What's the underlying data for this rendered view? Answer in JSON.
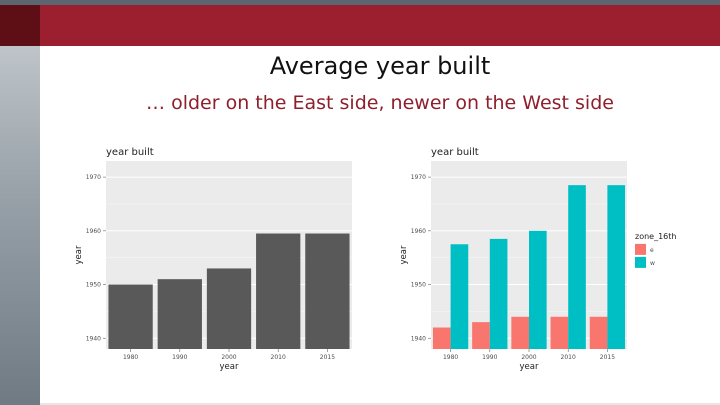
{
  "slide": {
    "title": "Average year built",
    "subtitle": "… older on the East side, newer on the West side"
  },
  "colors": {
    "header_band": "#9b1f2e",
    "subtitle": "#8e1f2c",
    "panel_bg": "#ebebeb",
    "bar_dark": "#595959",
    "series_e": "#f8766d",
    "series_w": "#00bfc4"
  },
  "chart_data": [
    {
      "type": "bar",
      "title": "year built",
      "xlabel": "year",
      "ylabel": "year",
      "categories": [
        "1980",
        "1990",
        "2000",
        "2010",
        "2015"
      ],
      "values": [
        1950,
        1951,
        1953,
        1959.5,
        1959.5
      ],
      "ylim": [
        1938,
        1973
      ],
      "yticks": [
        "1940",
        "1950",
        "1960",
        "1970"
      ],
      "grid": true,
      "legend": null
    },
    {
      "type": "bar",
      "title": "year built",
      "xlabel": "year",
      "ylabel": "year",
      "categories": [
        "1980",
        "1990",
        "2000",
        "2010",
        "2015"
      ],
      "series": [
        {
          "name": "e",
          "values": [
            1942,
            1943,
            1944,
            1944,
            1944
          ]
        },
        {
          "name": "w",
          "values": [
            1957.5,
            1958.5,
            1960,
            1968.5,
            1968.5
          ]
        }
      ],
      "ylim": [
        1938,
        1973
      ],
      "yticks": [
        "1940",
        "1950",
        "1960",
        "1970"
      ],
      "grid": true,
      "legend": {
        "title": "zone_16th",
        "position": "right"
      }
    }
  ]
}
